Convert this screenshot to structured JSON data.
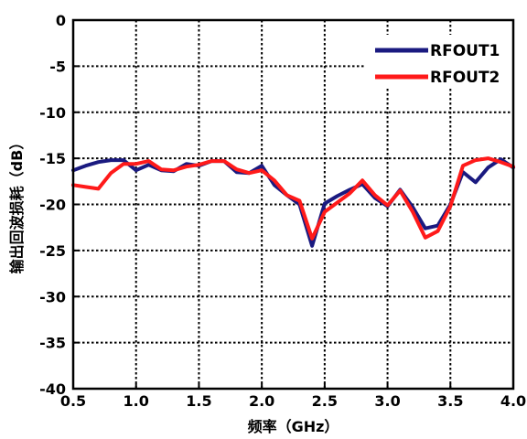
{
  "chart_data": {
    "type": "line",
    "xlabel": "频率（GHz）",
    "ylabel": "输出回波损耗（dB）",
    "xlim": [
      0.5,
      4.0
    ],
    "ylim": [
      -40,
      0
    ],
    "xticks": [
      "0.5",
      "1.0",
      "1.5",
      "2.0",
      "2.5",
      "3.0",
      "3.5",
      "4.0"
    ],
    "yticks": [
      "0",
      "-5",
      "-10",
      "-15",
      "-20",
      "-25",
      "-30",
      "-35",
      "-40"
    ],
    "grid": true,
    "legend_position": "top-right",
    "series": [
      {
        "name": "RFOUT1",
        "color": "#1a1a80",
        "points": [
          [
            0.5,
            -16.3
          ],
          [
            0.6,
            -15.8
          ],
          [
            0.7,
            -15.4
          ],
          [
            0.8,
            -15.2
          ],
          [
            0.9,
            -15.2
          ],
          [
            1.0,
            -16.3
          ],
          [
            1.1,
            -15.7
          ],
          [
            1.2,
            -16.3
          ],
          [
            1.3,
            -16.4
          ],
          [
            1.4,
            -15.6
          ],
          [
            1.5,
            -15.8
          ],
          [
            1.6,
            -15.3
          ],
          [
            1.7,
            -15.3
          ],
          [
            1.8,
            -16.5
          ],
          [
            1.9,
            -16.6
          ],
          [
            2.0,
            -15.8
          ],
          [
            2.1,
            -17.9
          ],
          [
            2.2,
            -19.0
          ],
          [
            2.3,
            -20.0
          ],
          [
            2.4,
            -24.5
          ],
          [
            2.5,
            -19.9
          ],
          [
            2.6,
            -19.1
          ],
          [
            2.7,
            -18.4
          ],
          [
            2.8,
            -17.8
          ],
          [
            2.9,
            -19.3
          ],
          [
            3.0,
            -20.2
          ],
          [
            3.1,
            -18.4
          ],
          [
            3.2,
            -20.3
          ],
          [
            3.3,
            -22.6
          ],
          [
            3.4,
            -22.3
          ],
          [
            3.5,
            -20.0
          ],
          [
            3.6,
            -16.5
          ],
          [
            3.7,
            -17.6
          ],
          [
            3.8,
            -16.0
          ],
          [
            3.9,
            -15.1
          ],
          [
            4.0,
            -16.0
          ]
        ]
      },
      {
        "name": "RFOUT2",
        "color": "#ff1a1a",
        "points": [
          [
            0.5,
            -17.9
          ],
          [
            0.6,
            -18.1
          ],
          [
            0.7,
            -18.3
          ],
          [
            0.8,
            -16.6
          ],
          [
            0.9,
            -15.6
          ],
          [
            1.0,
            -15.6
          ],
          [
            1.1,
            -15.3
          ],
          [
            1.2,
            -16.2
          ],
          [
            1.3,
            -16.3
          ],
          [
            1.4,
            -15.9
          ],
          [
            1.5,
            -15.7
          ],
          [
            1.6,
            -15.3
          ],
          [
            1.7,
            -15.3
          ],
          [
            1.8,
            -16.2
          ],
          [
            1.9,
            -16.6
          ],
          [
            2.0,
            -16.3
          ],
          [
            2.1,
            -17.4
          ],
          [
            2.2,
            -19.0
          ],
          [
            2.3,
            -19.6
          ],
          [
            2.4,
            -23.7
          ],
          [
            2.5,
            -20.8
          ],
          [
            2.6,
            -19.8
          ],
          [
            2.7,
            -18.8
          ],
          [
            2.8,
            -17.4
          ],
          [
            2.9,
            -19.0
          ],
          [
            3.0,
            -20.1
          ],
          [
            3.1,
            -18.5
          ],
          [
            3.2,
            -20.8
          ],
          [
            3.3,
            -23.6
          ],
          [
            3.4,
            -22.9
          ],
          [
            3.5,
            -20.2
          ],
          [
            3.6,
            -15.8
          ],
          [
            3.7,
            -15.2
          ],
          [
            3.8,
            -15.0
          ],
          [
            3.9,
            -15.4
          ],
          [
            4.0,
            -15.9
          ]
        ]
      }
    ]
  }
}
